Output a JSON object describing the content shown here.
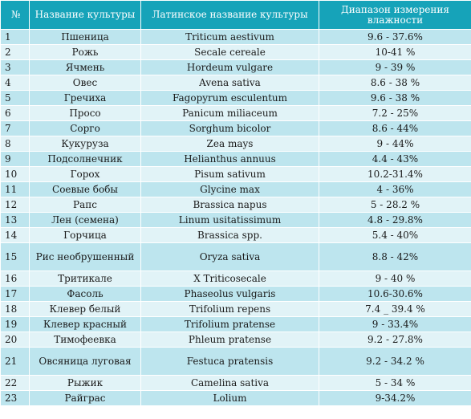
{
  "headers": {
    "num": "№",
    "name": "Название культуры",
    "latin": "Латинское название культуры",
    "range": "Диапазон измерения влажности"
  },
  "rows": [
    {
      "num": "1",
      "name": "Пшеница",
      "latin": "Triticum aestivum",
      "range": "9.6 - 37.6%"
    },
    {
      "num": "2",
      "name": "Рожь",
      "latin": "Secale cereale",
      "range": "10-41 %"
    },
    {
      "num": "3",
      "name": "Ячмень",
      "latin": "Hordeum vulgare",
      "range": "9 - 39 %"
    },
    {
      "num": "4",
      "name": "Овес",
      "latin": "Avena sativa",
      "range": "8.6 - 38 %"
    },
    {
      "num": "5",
      "name": "Гречиха",
      "latin": "Fagopyrum esculentum",
      "range": "9.6 - 38 %"
    },
    {
      "num": "6",
      "name": "Просо",
      "latin": "Panicum miliaceum",
      "range": "7.2 - 25%"
    },
    {
      "num": "7",
      "name": "Сорго",
      "latin": "Sorghum bicolor",
      "range": "8.6 - 44%"
    },
    {
      "num": "8",
      "name": "Кукуруза",
      "latin": "Zea mays",
      "range": "9 - 44%"
    },
    {
      "num": "9",
      "name": "Подсолнечник",
      "latin": "Helianthus annuus",
      "range": "4.4 - 43%"
    },
    {
      "num": "10",
      "name": "Горох",
      "latin": "Pisum sativum",
      "range": "10.2-31.4%"
    },
    {
      "num": "11",
      "name": "Соевые бобы",
      "latin": "Glycine max",
      "range": "4 - 36%"
    },
    {
      "num": "12",
      "name": "Рапс",
      "latin": "Brassica napus",
      "range": "5 - 28.2 %"
    },
    {
      "num": "13",
      "name": "Лен (семена)",
      "latin": "Linum usitatissimum",
      "range": "4.8 - 29.8%"
    },
    {
      "num": "14",
      "name": "Горчица",
      "latin": "Brassica spp.",
      "range": "5.4 - 40%"
    },
    {
      "num": "15",
      "name": "Рис необрушенный",
      "latin": "Oryza sativa",
      "range": "8.8 - 42%",
      "tall": true
    },
    {
      "num": "16",
      "name": "Тритикале",
      "latin": "X Triticosecale",
      "range": "9 - 40 %"
    },
    {
      "num": "17",
      "name": "Фасоль",
      "latin": "Phaseolus vulgaris",
      "range": "10.6-30.6%"
    },
    {
      "num": "18",
      "name": "Клевер белый",
      "latin": "Trifolium repens",
      "range": "7.4 _ 39.4 %"
    },
    {
      "num": "19",
      "name": "Клевер красный",
      "latin": "Trifolium pratense",
      "range": "9 - 33.4%"
    },
    {
      "num": "20",
      "name": "Тимофеевка",
      "latin": "Phleum pratense",
      "range": "9.2 - 27.8%"
    },
    {
      "num": "21",
      "name": "Овсяница луговая",
      "latin": "Festuca pratensis",
      "range": "9.2 - 34.2 %",
      "tall": true
    },
    {
      "num": "22",
      "name": "Рыжик",
      "latin": "Camelina sativa",
      "range": "5 - 34 %"
    },
    {
      "num": "23",
      "name": "Райграс",
      "latin": "Lolium",
      "range": "9-34.2%"
    }
  ]
}
